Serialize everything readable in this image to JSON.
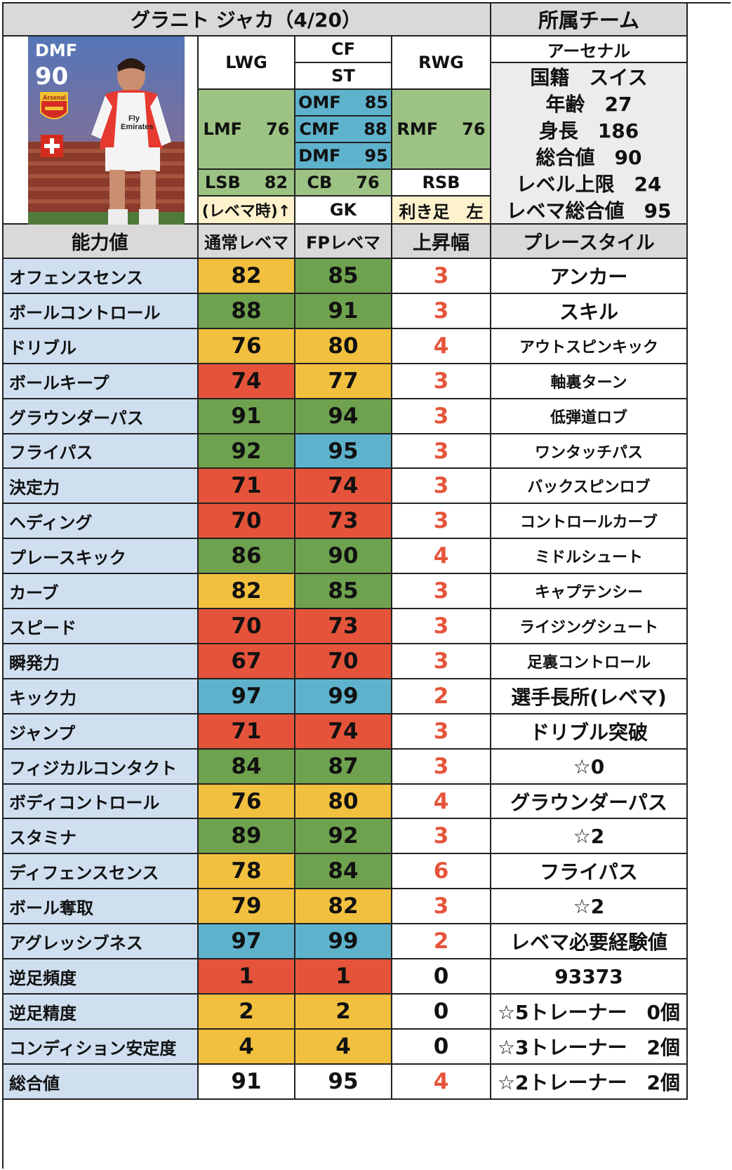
{
  "title": "グラニト ジャカ（4/20）",
  "card": {
    "position": "DMF",
    "rating": "90",
    "club_badge": "Arsenal",
    "flag": "swiss-flag"
  },
  "positions": {
    "CF": "CF",
    "ST": "ST",
    "LWG": "LWG",
    "RWG": "RWG",
    "LMF": "LMF",
    "LMF_val": "76",
    "RMF": "RMF",
    "RMF_val": "76",
    "OMF": "OMF",
    "OMF_val": "85",
    "CMF": "CMF",
    "CMF_val": "88",
    "DMF": "DMF",
    "DMF_val": "95",
    "LSB": "LSB",
    "LSB_val": "82",
    "CB": "CB",
    "CB_val": "76",
    "RSB": "RSB",
    "note": "(レベマ時)↑",
    "GK": "GK",
    "foot": "利き足　左"
  },
  "profile": {
    "header": "所属チーム",
    "team": "アーセナル",
    "nationality": "国籍　スイス",
    "age": "年齢　27",
    "height": "身長　186",
    "overall": "総合値　90",
    "level_cap": "レベル上限　24",
    "max_overall": "レベマ総合値　95"
  },
  "table": {
    "headers": [
      "能力値",
      "通常レベマ",
      "FPレベマ",
      "上昇幅",
      "プレースタイル"
    ],
    "rows": [
      {
        "label": "オフェンスセンス",
        "normal": "82",
        "fp": "85",
        "inc": "3"
      },
      {
        "label": "ボールコントロール",
        "normal": "88",
        "fp": "91",
        "inc": "3"
      },
      {
        "label": "ドリブル",
        "normal": "76",
        "fp": "80",
        "inc": "4"
      },
      {
        "label": "ボールキープ",
        "normal": "74",
        "fp": "77",
        "inc": "3"
      },
      {
        "label": "グラウンダーパス",
        "normal": "91",
        "fp": "94",
        "inc": "3"
      },
      {
        "label": "フライパス",
        "normal": "92",
        "fp": "95",
        "inc": "3"
      },
      {
        "label": "決定力",
        "normal": "71",
        "fp": "74",
        "inc": "3"
      },
      {
        "label": "ヘディング",
        "normal": "70",
        "fp": "73",
        "inc": "3"
      },
      {
        "label": "プレースキック",
        "normal": "86",
        "fp": "90",
        "inc": "4"
      },
      {
        "label": "カーブ",
        "normal": "82",
        "fp": "85",
        "inc": "3"
      },
      {
        "label": "スピード",
        "normal": "70",
        "fp": "73",
        "inc": "3"
      },
      {
        "label": "瞬発力",
        "normal": "67",
        "fp": "70",
        "inc": "3"
      },
      {
        "label": "キック力",
        "normal": "97",
        "fp": "99",
        "inc": "2"
      },
      {
        "label": "ジャンプ",
        "normal": "71",
        "fp": "74",
        "inc": "3"
      },
      {
        "label": "フィジカルコンタクト",
        "normal": "84",
        "fp": "87",
        "inc": "3"
      },
      {
        "label": "ボディコントロール",
        "normal": "76",
        "fp": "80",
        "inc": "4"
      },
      {
        "label": "スタミナ",
        "normal": "89",
        "fp": "92",
        "inc": "3"
      },
      {
        "label": "ディフェンスセンス",
        "normal": "78",
        "fp": "84",
        "inc": "6"
      },
      {
        "label": "ボール奪取",
        "normal": "79",
        "fp": "82",
        "inc": "3"
      },
      {
        "label": "アグレッシブネス",
        "normal": "97",
        "fp": "99",
        "inc": "2"
      },
      {
        "label": "逆足頻度",
        "normal": "1",
        "fp": "1",
        "inc": "0"
      },
      {
        "label": "逆足精度",
        "normal": "2",
        "fp": "2",
        "inc": "0"
      },
      {
        "label": "コンディション安定度",
        "normal": "4",
        "fp": "4",
        "inc": "0"
      },
      {
        "label": "総合値",
        "normal": "91",
        "fp": "95",
        "inc": "4"
      }
    ]
  },
  "side": [
    "アンカー",
    "スキル",
    "アウトスピンキック",
    "軸裏ターン",
    "低弾道ロブ",
    "ワンタッチパス",
    "バックスピンロブ",
    "コントロールカーブ",
    "ミドルシュート",
    "キャプテンシー",
    "ライジングシュート",
    "足裏コントロール",
    "選手長所(レベマ)",
    "ドリブル突破",
    "☆0",
    "グラウンダーパス",
    "☆2",
    "フライパス",
    "☆2",
    "レベマ必要経験値",
    "93373",
    "☆5トレーナー　0個",
    "☆3トレーナー　2個",
    "☆2トレーナー　2個"
  ],
  "colors": {
    "yellow": "#f2c03f",
    "green": "#6fa24e",
    "red": "#e5543a",
    "blue": "#5eb2cc",
    "label_bg": "#cfdff0",
    "header_bg": "#d9d9d9",
    "position_green": "#9dc384"
  }
}
